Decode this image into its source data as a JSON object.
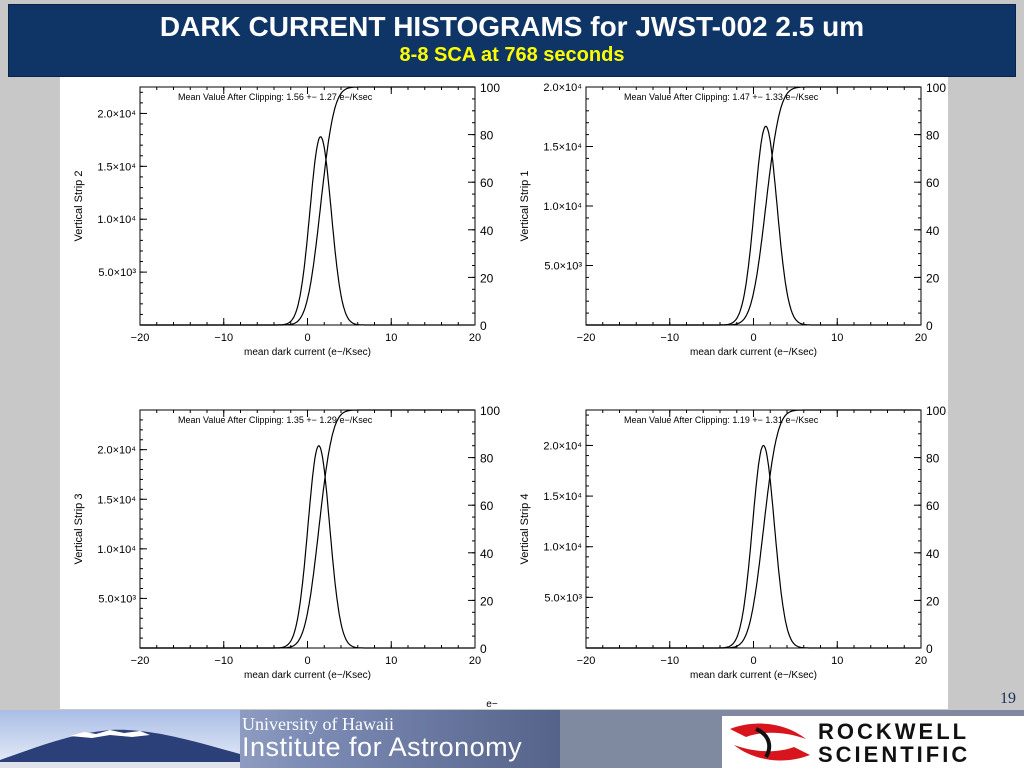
{
  "title": "DARK CURRENT HISTOGRAMS for JWST-002  2.5 um",
  "subtitle": "8-8 SCA at 768 seconds",
  "page_number": "19",
  "stray_label": "e−",
  "footer": {
    "university_line1": "University of Hawaii",
    "university_line2": "Institute for Astronomy",
    "rockwell_line1": "ROCKWELL",
    "rockwell_line2": "SCIENTIFIC"
  },
  "colors": {
    "title_bg": "#0f3466",
    "title_text": "#ffffff",
    "subtitle_text": "#ffff00",
    "rockwell_red": "#d8141c"
  },
  "chart_data": [
    {
      "type": "line",
      "ylabel": "Vertical Strip 2",
      "xlabel": "mean dark current (e−/Ksec)",
      "annotation": "Mean Value After Clipping:   1.56 +− 1.27 e−/Ksec",
      "xlim": [
        -20,
        20
      ],
      "ylim": [
        0,
        22500
      ],
      "xticks": [
        "−20",
        "−10",
        "0",
        "10",
        "20"
      ],
      "yticks": [
        {
          "v": 5000,
          "label": "5.0×10³"
        },
        {
          "v": 10000,
          "label": "1.0×10⁴"
        },
        {
          "v": 15000,
          "label": "1.5×10⁴"
        },
        {
          "v": 20000,
          "label": "2.0×10⁴"
        }
      ],
      "y2ticks": [
        "0",
        "20",
        "40",
        "60",
        "80",
        "100"
      ],
      "series": [
        {
          "kind": "histogram",
          "mean": 1.56,
          "sigma": 1.27,
          "peak": 17800
        },
        {
          "kind": "cumulative_percent",
          "mean": 1.56,
          "sigma": 1.27
        }
      ]
    },
    {
      "type": "line",
      "ylabel": "Vertical Strip 1",
      "xlabel": "mean dark current (e−/Ksec)",
      "annotation": "Mean Value After Clipping:   1.47 +− 1.33 e−/Ksec",
      "xlim": [
        -20,
        20
      ],
      "ylim": [
        0,
        20000
      ],
      "xticks": [
        "−20",
        "−10",
        "0",
        "10",
        "20"
      ],
      "yticks": [
        {
          "v": 5000,
          "label": "5.0×10³"
        },
        {
          "v": 10000,
          "label": "1.0×10⁴"
        },
        {
          "v": 15000,
          "label": "1.5×10⁴"
        },
        {
          "v": 20000,
          "label": "2.0×10⁴"
        }
      ],
      "y2ticks": [
        "0",
        "20",
        "40",
        "60",
        "80",
        "100"
      ],
      "series": [
        {
          "kind": "histogram",
          "mean": 1.47,
          "sigma": 1.33,
          "peak": 16700
        },
        {
          "kind": "cumulative_percent",
          "mean": 1.47,
          "sigma": 1.33
        }
      ]
    },
    {
      "type": "line",
      "ylabel": "Vertical Strip 3",
      "xlabel": "mean dark current (e−/Ksec)",
      "annotation": "Mean Value After Clipping:   1.35 +− 1.29 e−/Ksec",
      "xlim": [
        -20,
        20
      ],
      "ylim": [
        0,
        24000
      ],
      "xticks": [
        "−20",
        "−10",
        "0",
        "10",
        "20"
      ],
      "yticks": [
        {
          "v": 5000,
          "label": "5.0×10³"
        },
        {
          "v": 10000,
          "label": "1.0×10⁴"
        },
        {
          "v": 15000,
          "label": "1.5×10⁴"
        },
        {
          "v": 20000,
          "label": "2.0×10⁴"
        }
      ],
      "y2ticks": [
        "0",
        "20",
        "40",
        "60",
        "80",
        "100"
      ],
      "series": [
        {
          "kind": "histogram",
          "mean": 1.35,
          "sigma": 1.29,
          "peak": 20400
        },
        {
          "kind": "cumulative_percent",
          "mean": 1.35,
          "sigma": 1.29
        }
      ]
    },
    {
      "type": "line",
      "ylabel": "Vertical Strip 4",
      "xlabel": "mean dark current (e−/Ksec)",
      "annotation": "Mean Value After Clipping:   1.19 +− 1.31 e−/Ksec",
      "xlim": [
        -20,
        20
      ],
      "ylim": [
        0,
        23500
      ],
      "xticks": [
        "−20",
        "−10",
        "0",
        "10",
        "20"
      ],
      "yticks": [
        {
          "v": 5000,
          "label": "5.0×10³"
        },
        {
          "v": 10000,
          "label": "1.0×10⁴"
        },
        {
          "v": 15000,
          "label": "1.5×10⁴"
        },
        {
          "v": 20000,
          "label": "2.0×10⁴"
        }
      ],
      "y2ticks": [
        "0",
        "20",
        "40",
        "60",
        "80",
        "100"
      ],
      "series": [
        {
          "kind": "histogram",
          "mean": 1.19,
          "sigma": 1.31,
          "peak": 20000
        },
        {
          "kind": "cumulative_percent",
          "mean": 1.19,
          "sigma": 1.31
        }
      ]
    }
  ]
}
